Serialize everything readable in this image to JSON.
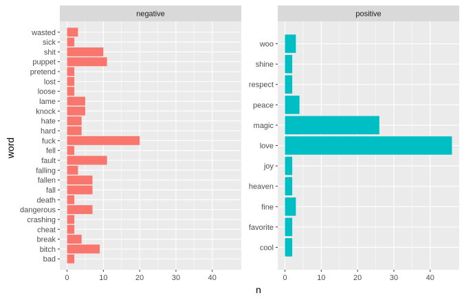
{
  "chart_data": {
    "type": "bar",
    "orientation": "horizontal",
    "xlabel": "n",
    "ylabel": "word",
    "xlim": [
      -2,
      48
    ],
    "xticks": [
      0,
      10,
      20,
      30,
      40
    ],
    "grid": true,
    "facets": [
      {
        "title": "negative",
        "color": "#F8766D",
        "categories": [
          "bad",
          "bitch",
          "break",
          "cheat",
          "crashing",
          "dangerous",
          "death",
          "fall",
          "fallen",
          "falling",
          "fault",
          "fell",
          "fuck",
          "hard",
          "hate",
          "knock",
          "lame",
          "loose",
          "lost",
          "pretend",
          "puppet",
          "shit",
          "sick",
          "wasted"
        ],
        "values": [
          2,
          9,
          4,
          2,
          2,
          7,
          2,
          7,
          7,
          3,
          11,
          2,
          20,
          4,
          4,
          5,
          5,
          2,
          2,
          2,
          11,
          10,
          2,
          3
        ]
      },
      {
        "title": "positive",
        "color": "#00BFC4",
        "categories": [
          "cool",
          "favorite",
          "fine",
          "heaven",
          "joy",
          "love",
          "magic",
          "peace",
          "respect",
          "shine",
          "woo"
        ],
        "values": [
          2,
          2,
          3,
          2,
          2,
          46,
          26,
          4,
          2,
          2,
          3
        ]
      }
    ]
  }
}
